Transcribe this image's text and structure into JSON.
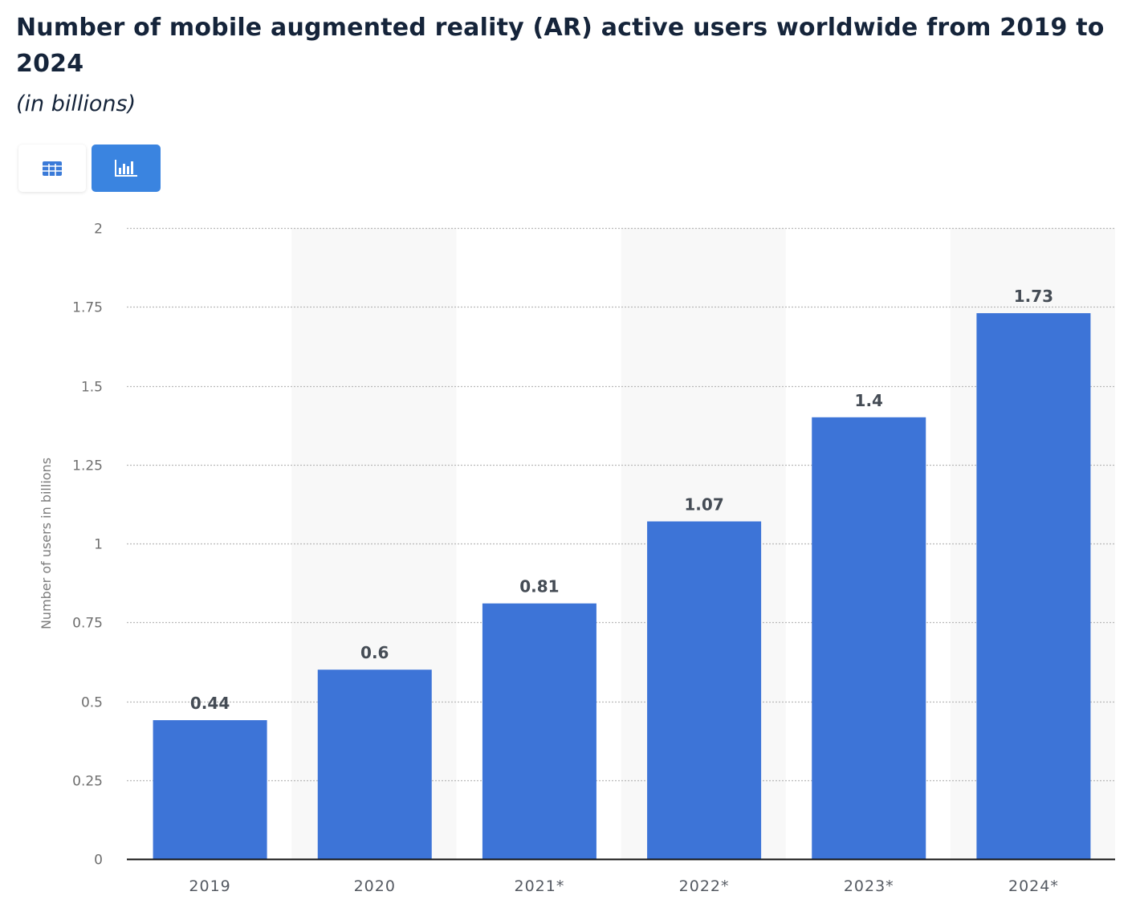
{
  "header": {
    "title": "Number of mobile augmented reality (AR) active users worldwide from 2019 to 2024",
    "subtitle": "(in billions)"
  },
  "view_toggle": {
    "options": [
      {
        "id": "table",
        "icon": "table-icon",
        "active": false
      },
      {
        "id": "chart",
        "icon": "bar-chart-icon",
        "active": true
      }
    ],
    "active_color": "#3a84e0"
  },
  "chart_data": {
    "type": "bar",
    "title": "Number of mobile augmented reality (AR) active users worldwide from 2019 to 2024",
    "subtitle": "(in billions)",
    "categories": [
      "2019",
      "2020",
      "2021*",
      "2022*",
      "2023*",
      "2024*"
    ],
    "values": [
      0.44,
      0.6,
      0.81,
      1.07,
      1.4,
      1.73
    ],
    "value_labels": [
      "0.44",
      "0.6",
      "0.81",
      "1.07",
      "1.4",
      "1.73"
    ],
    "xlabel": "",
    "ylabel": "Number of users in billions",
    "ylim": [
      0,
      2
    ],
    "yticks": [
      0,
      0.25,
      0.5,
      0.75,
      1,
      1.25,
      1.5,
      1.75,
      2
    ],
    "ytick_labels": [
      "0",
      "0.25",
      "0.5",
      "0.75",
      "1",
      "1.25",
      "1.5",
      "1.75",
      "2"
    ],
    "grid": true,
    "legend": "none",
    "bar_color": "#3d74d7",
    "alternate_band_color": "#f8f8f8"
  }
}
